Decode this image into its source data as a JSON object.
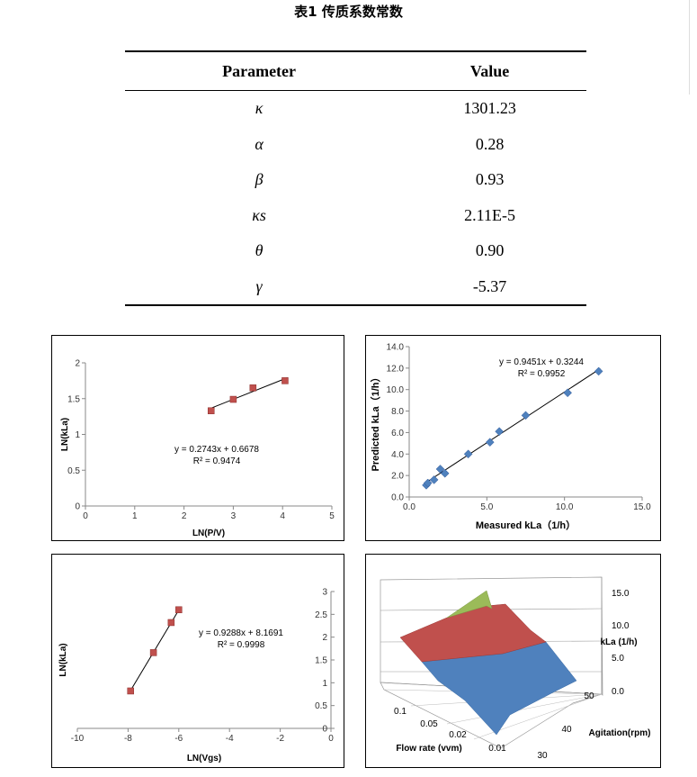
{
  "caption": "表1   传质系数常数",
  "table": {
    "headers": [
      "Parameter",
      "Value"
    ],
    "rows": [
      {
        "param": "κ",
        "value": "1301.23"
      },
      {
        "param": "α",
        "value": "0.28"
      },
      {
        "param": "β",
        "value": "0.93"
      },
      {
        "param": "κs",
        "value": "2.11E-5"
      },
      {
        "param": "θ",
        "value": "0.90"
      },
      {
        "param": "γ",
        "value": "-5.37"
      }
    ]
  },
  "chart_data": [
    {
      "type": "scatter",
      "xlabel": "LN(P/V)",
      "ylabel": "LN(kLa)",
      "xlim": [
        0,
        5
      ],
      "ylim": [
        0,
        2
      ],
      "xticks": [
        "0",
        "1",
        "2",
        "3",
        "4",
        "5"
      ],
      "yticks": [
        "0",
        "0.5",
        "1",
        "1.5",
        "2"
      ],
      "points": [
        [
          2.55,
          1.33
        ],
        [
          3.0,
          1.49
        ],
        [
          3.4,
          1.65
        ],
        [
          4.05,
          1.75
        ]
      ],
      "trendline": {
        "x": [
          2.55,
          4.1
        ],
        "slope": 0.2743,
        "intercept": 0.6678
      },
      "equation": "y = 0.2743x + 0.6678",
      "r2": "R² = 0.9474",
      "marker_color": "#c0504d",
      "grid": false
    },
    {
      "type": "scatter",
      "xlabel": "Measured kLa（1/h）",
      "ylabel": "Predicted kLa（1/h）",
      "xlim": [
        0,
        15
      ],
      "ylim": [
        0,
        14
      ],
      "xticks": [
        "0.0",
        "5.0",
        "10.0",
        "15.0"
      ],
      "yticks": [
        "0.0",
        "2.0",
        "4.0",
        "6.0",
        "8.0",
        "10.0",
        "12.0",
        "14.0"
      ],
      "points": [
        [
          1.1,
          1.1
        ],
        [
          1.2,
          1.3
        ],
        [
          1.6,
          1.6
        ],
        [
          2.0,
          2.6
        ],
        [
          2.3,
          2.2
        ],
        [
          3.8,
          4.0
        ],
        [
          5.2,
          5.1
        ],
        [
          5.8,
          6.1
        ],
        [
          7.5,
          7.6
        ],
        [
          10.2,
          9.7
        ],
        [
          12.2,
          11.7
        ]
      ],
      "trendline": {
        "x": [
          1.0,
          12.3
        ],
        "slope": 0.9451,
        "intercept": 0.3244
      },
      "equation": "y = 0.9451x + 0.3244",
      "r2": "R² = 0.9952",
      "marker_color": "#4f81bd",
      "grid": false
    },
    {
      "type": "scatter",
      "xlabel": "LN(Vgs)",
      "ylabel": "LN(kLa)",
      "xlim": [
        -10,
        0
      ],
      "ylim": [
        0,
        3
      ],
      "xticks": [
        "-10",
        "-8",
        "-6",
        "-4",
        "-2",
        "0"
      ],
      "yticks": [
        "0",
        "0.5",
        "1",
        "1.5",
        "2",
        "2.5",
        "3"
      ],
      "points": [
        [
          -7.9,
          0.82
        ],
        [
          -7.0,
          1.66
        ],
        [
          -6.3,
          2.32
        ],
        [
          -6.0,
          2.6
        ]
      ],
      "trendline": {
        "x": [
          -7.95,
          -6.0
        ],
        "slope": 0.9288,
        "intercept": 8.1691
      },
      "equation": "y = 0.9288x + 8.1691",
      "r2": "R² = 0.9998",
      "marker_color": "#c0504d",
      "grid": false
    },
    {
      "type": "surface",
      "xlabel": "Flow rate (vvm)",
      "ylabel": "Agitation(rpm)",
      "zlabel": "kLa (1/h)",
      "xticks": [
        "0.1",
        "0.05",
        "0.02",
        "0.01"
      ],
      "yticks": [
        "30",
        "40",
        "50"
      ],
      "zticks": [
        "0.0",
        "5.0",
        "10.0",
        "15.0"
      ],
      "band_colors": [
        "#4f81bd",
        "#c0504d",
        "#9bbb59"
      ],
      "grid": true
    }
  ]
}
